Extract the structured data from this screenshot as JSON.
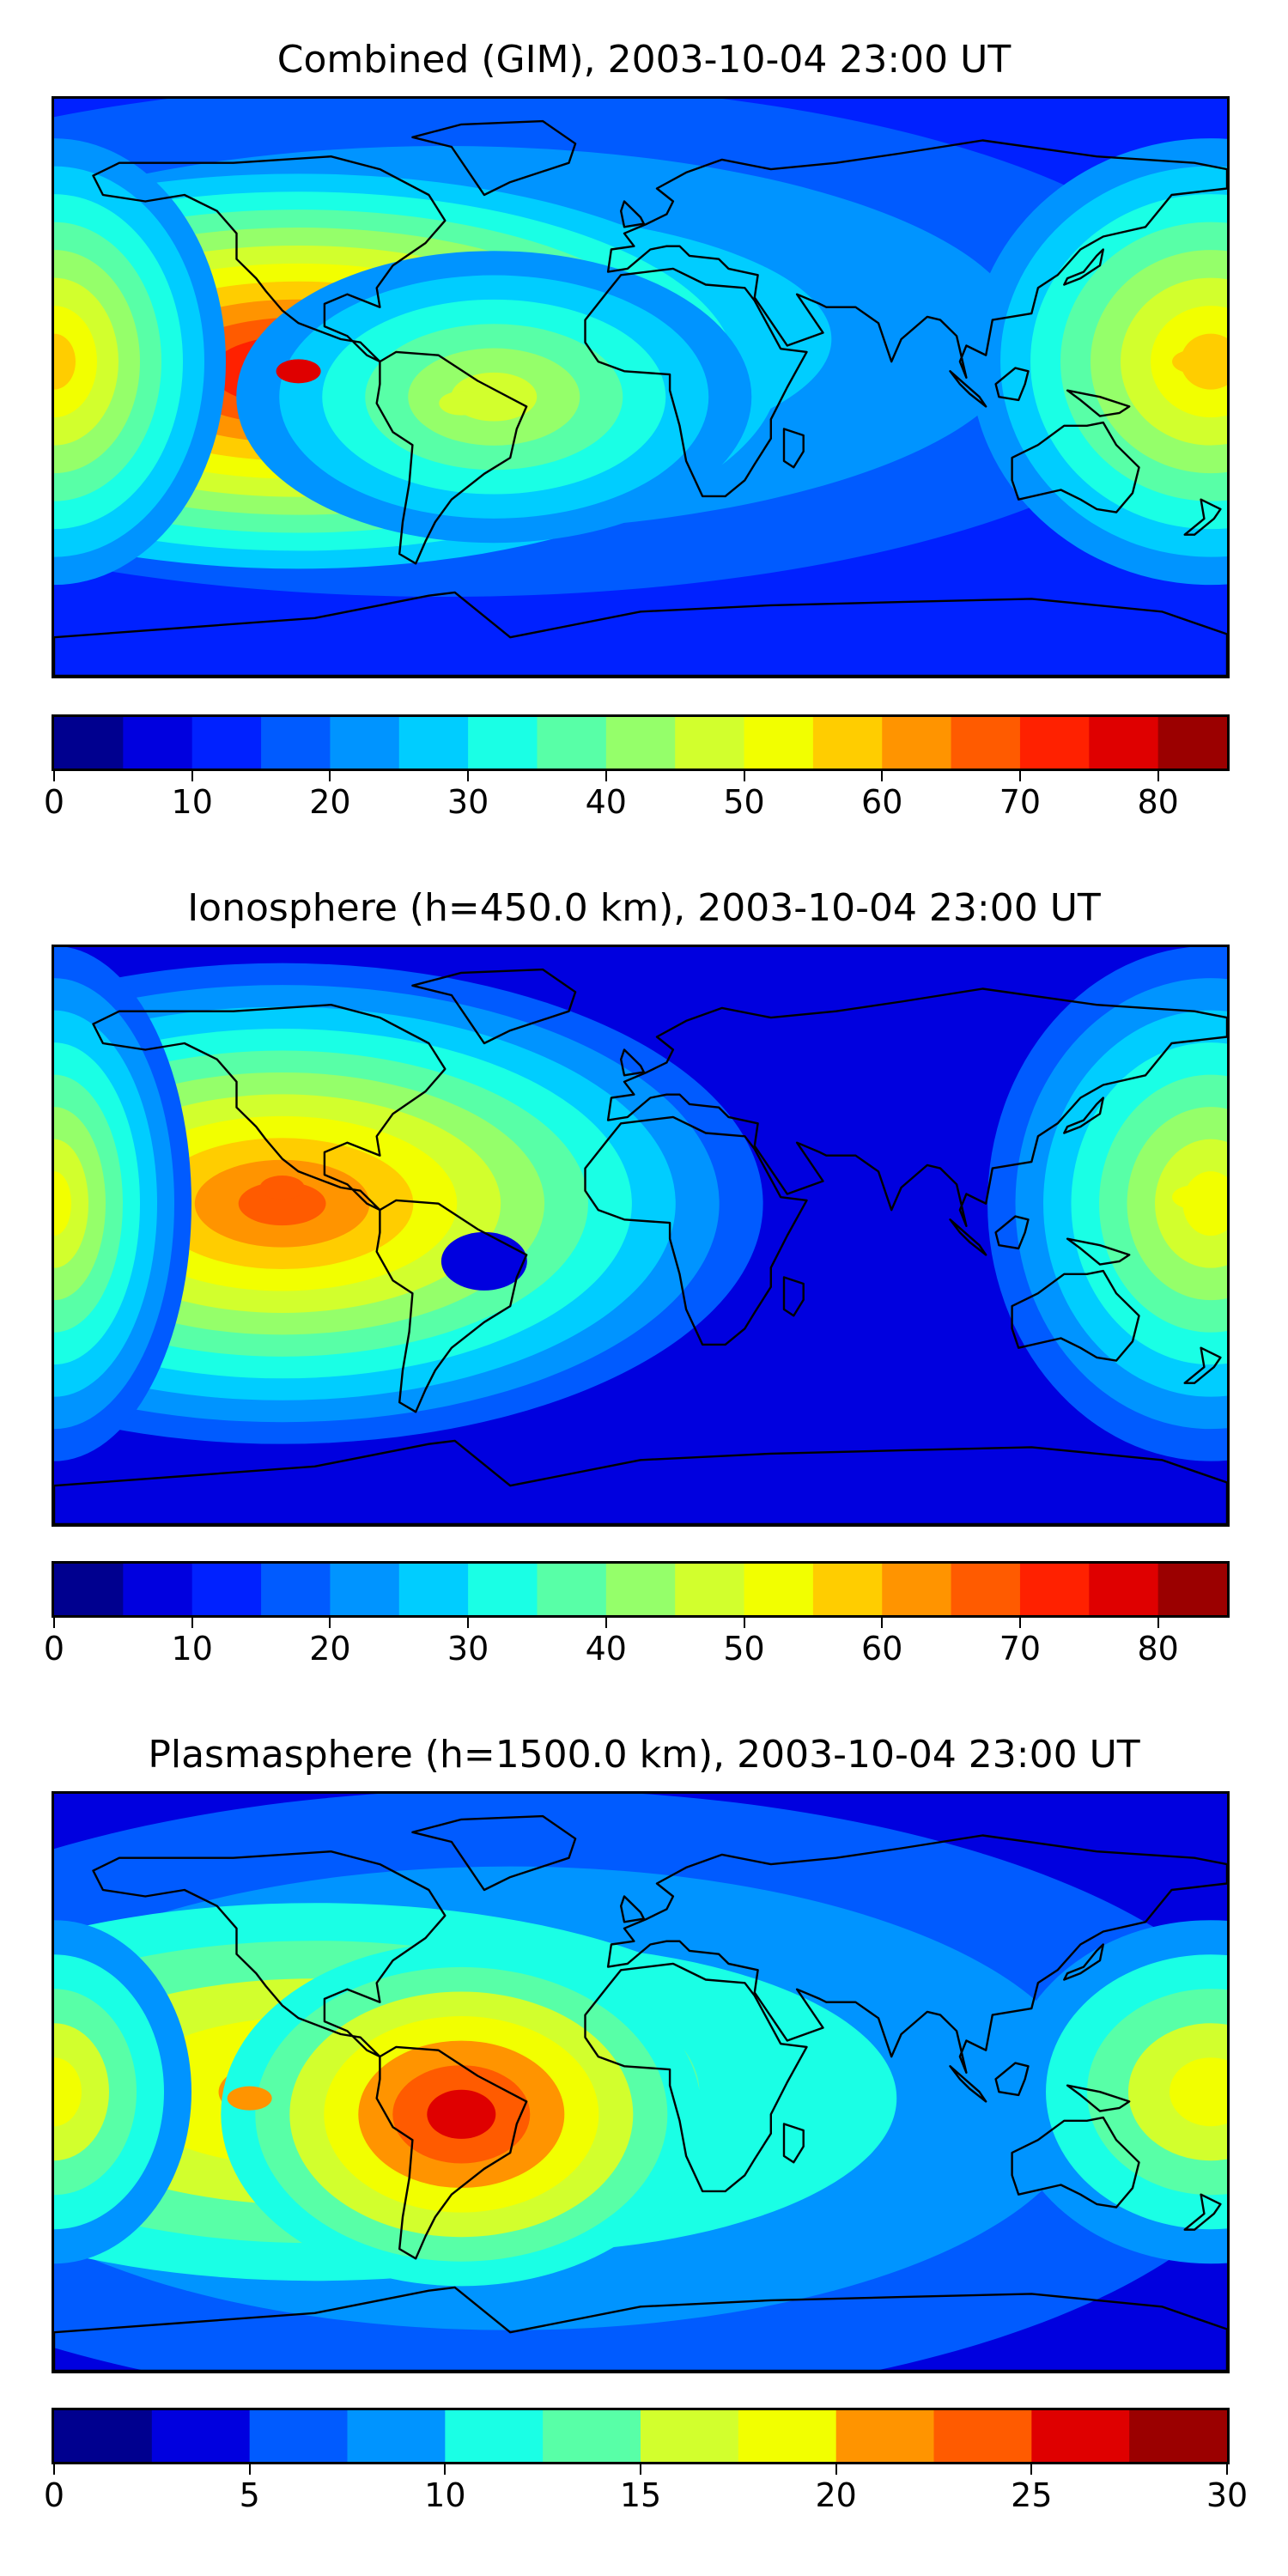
{
  "chart_data": [
    {
      "type": "heatmap",
      "title": "Combined (GIM), 2003-10-04 23:00 UT",
      "colorbar": {
        "min": 0,
        "max": 85,
        "step": 5,
        "ticks": [
          0,
          10,
          20,
          30,
          40,
          50,
          60,
          70,
          80
        ],
        "tick_labels": [
          "0",
          "10",
          "20",
          "30",
          "40",
          "50",
          "60",
          "70",
          "80"
        ]
      },
      "hotspots": [
        {
          "region": "eastern Pacific equatorial",
          "lon": -105,
          "lat": 5,
          "value": 75
        },
        {
          "region": "western Pacific",
          "lon": 170,
          "lat": 8,
          "value": 55
        },
        {
          "region": "South America",
          "lon": -55,
          "lat": -5,
          "value": 45
        }
      ],
      "background_value": 10
    },
    {
      "type": "heatmap",
      "title": "Ionosphere  (h=450.0 km), 2003-10-04 23:00 UT",
      "colorbar": {
        "min": 0,
        "max": 85,
        "step": 5,
        "ticks": [
          0,
          10,
          20,
          30,
          40,
          50,
          60,
          70,
          80
        ],
        "tick_labels": [
          "0",
          "10",
          "20",
          "30",
          "40",
          "50",
          "60",
          "70",
          "80"
        ]
      },
      "hotspots": [
        {
          "region": "eastern Pacific",
          "lon": -110,
          "lat": 15,
          "value": 65
        },
        {
          "region": "western Pacific",
          "lon": 170,
          "lat": 12,
          "value": 50
        }
      ],
      "background_value": 8
    },
    {
      "type": "heatmap",
      "title": "Plasmasphere (h=1500.0 km), 2003-10-04 23:00 UT",
      "colorbar": {
        "min": 0,
        "max": 30,
        "step": 2.5,
        "ticks": [
          0,
          5,
          10,
          15,
          20,
          25,
          30
        ],
        "tick_labels": [
          "0",
          "5",
          "10",
          "15",
          "20",
          "25",
          "30"
        ]
      },
      "hotspots": [
        {
          "region": "central South America",
          "lon": -55,
          "lat": -10,
          "value": 26
        },
        {
          "region": "eastern Pacific",
          "lon": -120,
          "lat": -5,
          "value": 20
        },
        {
          "region": "western Pacific",
          "lon": 170,
          "lat": -5,
          "value": 19
        }
      ],
      "background_value": 3
    }
  ],
  "colormap": [
    "#00008f",
    "#0000df",
    "#0021ff",
    "#005bff",
    "#0094ff",
    "#00cdff",
    "#1affe5",
    "#58ffa7",
    "#95ff6a",
    "#d2ff2d",
    "#f2ff00",
    "#ffcd00",
    "#ff9400",
    "#ff5b00",
    "#ff2100",
    "#df0000",
    "#9b0000"
  ]
}
